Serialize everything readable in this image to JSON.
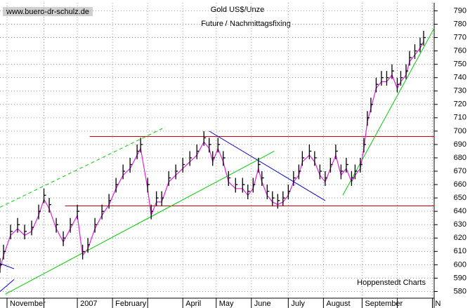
{
  "chart_data": {
    "type": "ohlc",
    "watermark": "www.buero-dr-schulz.de",
    "title": "Gold US$/Unze",
    "legend_separator": "/",
    "source": "Hoppenstedt Charts",
    "xlim": [
      0,
      247
    ],
    "ylim": [
      575,
      796
    ],
    "yticks": [
      580,
      590,
      600,
      610,
      620,
      630,
      640,
      650,
      660,
      670,
      680,
      690,
      700,
      710,
      720,
      730,
      740,
      750,
      760,
      770,
      780,
      790
    ],
    "xticks": [
      {
        "value": 4,
        "label": "November"
      },
      25,
      {
        "value": 44,
        "label": "2007"
      },
      {
        "value": 64,
        "label": "February"
      },
      84,
      {
        "value": 104,
        "label": "April"
      },
      {
        "value": 123,
        "label": "May"
      },
      {
        "value": 143,
        "label": "June"
      },
      {
        "value": 164,
        "label": "July"
      },
      {
        "value": 184,
        "label": "August"
      },
      {
        "value": 206,
        "label": "September"
      },
      226,
      {
        "value": 246,
        "label": "N"
      }
    ],
    "grid": true,
    "x": [
      0,
      2,
      6,
      10,
      14,
      18,
      22,
      25,
      28,
      32,
      36,
      40,
      44,
      47,
      50,
      54,
      58,
      62,
      66,
      70,
      74,
      78,
      80,
      84,
      86,
      89,
      92,
      96,
      100,
      104,
      108,
      112,
      116,
      119,
      121,
      124,
      127,
      130,
      134,
      138,
      141,
      144,
      147,
      149,
      152,
      155,
      158,
      161,
      164,
      167,
      170,
      172,
      176,
      179,
      182,
      185,
      188,
      191,
      194,
      197,
      200,
      202,
      205,
      207,
      209,
      211,
      214,
      217,
      220,
      223,
      226,
      228,
      231,
      233,
      236,
      239,
      241
    ],
    "series": [
      {
        "name": "Future",
        "color": "#000000",
        "high": [
          605,
          615,
          630,
          635,
          630,
          633,
          645,
          657,
          650,
          635,
          625,
          635,
          645,
          615,
          620,
          635,
          645,
          653,
          665,
          675,
          680,
          690,
          695,
          665,
          645,
          655,
          655,
          670,
          675,
          680,
          685,
          690,
          700,
          695,
          685,
          695,
          685,
          670,
          665,
          665,
          660,
          665,
          680,
          670,
          660,
          655,
          653,
          655,
          660,
          670,
          675,
          685,
          690,
          685,
          675,
          670,
          680,
          690,
          675,
          680,
          670,
          675,
          680,
          695,
          715,
          725,
          740,
          745,
          745,
          750,
          740,
          745,
          750,
          760,
          765,
          770,
          775
        ],
        "low": [
          594,
          604,
          619,
          624,
          619,
          622,
          634,
          646,
          639,
          624,
          614,
          624,
          634,
          604,
          609,
          624,
          634,
          642,
          654,
          664,
          669,
          679,
          684,
          654,
          634,
          644,
          644,
          659,
          664,
          669,
          674,
          679,
          689,
          684,
          674,
          684,
          674,
          659,
          654,
          654,
          649,
          654,
          669,
          659,
          649,
          644,
          642,
          644,
          649,
          659,
          664,
          674,
          679,
          674,
          664,
          659,
          669,
          679,
          664,
          669,
          659,
          664,
          669,
          684,
          704,
          714,
          729,
          734,
          734,
          739,
          729,
          734,
          739,
          749,
          754,
          759,
          764
        ],
        "values": [
          600,
          610,
          625,
          630,
          625,
          628,
          640,
          652,
          645,
          630,
          620,
          630,
          640,
          610,
          615,
          630,
          640,
          648,
          660,
          670,
          675,
          685,
          690,
          660,
          640,
          650,
          650,
          665,
          670,
          675,
          680,
          685,
          695,
          690,
          680,
          690,
          680,
          665,
          660,
          660,
          655,
          660,
          675,
          665,
          655,
          650,
          648,
          650,
          655,
          665,
          670,
          680,
          685,
          680,
          670,
          665,
          675,
          685,
          670,
          675,
          665,
          670,
          675,
          690,
          710,
          720,
          735,
          740,
          740,
          745,
          735,
          740,
          745,
          755,
          760,
          765,
          770
        ]
      },
      {
        "name": "Nachmittagsfixing",
        "color": "#e020e0",
        "values": [
          597,
          607,
          622,
          627,
          622,
          625,
          637,
          649,
          642,
          627,
          617,
          627,
          637,
          607,
          612,
          627,
          637,
          645,
          657,
          667,
          672,
          682,
          687,
          657,
          637,
          647,
          647,
          662,
          667,
          672,
          677,
          682,
          692,
          687,
          677,
          687,
          677,
          662,
          657,
          657,
          652,
          657,
          672,
          662,
          652,
          647,
          645,
          647,
          652,
          662,
          667,
          677,
          682,
          677,
          667,
          662,
          672,
          682,
          667,
          672,
          662,
          667,
          672,
          687,
          707,
          717,
          732,
          737,
          737,
          742,
          732,
          737,
          742,
          752,
          757,
          762,
          767
        ]
      }
    ],
    "trendlines": [
      {
        "color": "#cc0000",
        "x": [
          51,
          247
        ],
        "y": [
          696,
          696
        ]
      },
      {
        "color": "#cc0000",
        "x": [
          37,
          247
        ],
        "y": [
          644,
          644
        ]
      },
      {
        "color": "#00cc00",
        "x": [
          3,
          156
        ],
        "y": [
          578,
          685
        ]
      },
      {
        "color": "#00cc00",
        "dashed": true,
        "x": [
          0,
          94
        ],
        "y": [
          643,
          703
        ]
      },
      {
        "color": "#0000cc",
        "x": [
          119,
          185
        ],
        "y": [
          700,
          648
        ]
      },
      {
        "color": "#00cc00",
        "x": [
          195,
          247
        ],
        "y": [
          652,
          777
        ]
      },
      {
        "color": "#0000cc",
        "x": [
          0,
          8
        ],
        "y": [
          601,
          597
        ]
      },
      {
        "color": "#0000cc",
        "x": [
          0,
          8
        ],
        "y": [
          580,
          589
        ]
      }
    ]
  }
}
